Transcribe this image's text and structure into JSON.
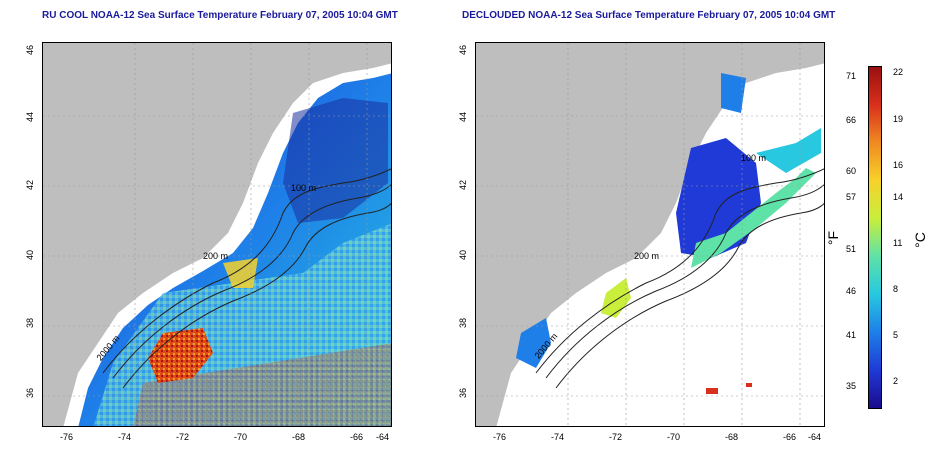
{
  "titles": {
    "left": "RU COOL NOAA-12 Sea Surface Temperature February 07, 2005 10:04 GMT",
    "right": "DECLOUDED NOAA-12 Sea Surface Temperature February 07, 2005 10:04 GMT"
  },
  "axes": {
    "x_ticks": [
      "-76",
      "-74",
      "-72",
      "-70",
      "-68",
      "-66",
      "-64"
    ],
    "y_ticks": [
      "46",
      "44",
      "42",
      "40",
      "38",
      "36"
    ]
  },
  "contour_labels": {
    "left": [
      "100 m",
      "200 m",
      "2000 m"
    ],
    "right": [
      "100 m",
      "200 m",
      "2000 m"
    ]
  },
  "colorbar": {
    "fahrenheit_ticks": [
      "71",
      "66",
      "60",
      "57",
      "51",
      "46",
      "41",
      "35"
    ],
    "celsius_ticks": [
      "22",
      "19",
      "16",
      "14",
      "11",
      "8",
      "5",
      "2"
    ],
    "unit_f": "°F",
    "unit_c": "°C",
    "colors": [
      "#1a0b8c",
      "#1f3ad6",
      "#1e7fe8",
      "#27c8e0",
      "#5ee2a8",
      "#c9ee3c",
      "#f7d22a",
      "#f08a22",
      "#d8301c",
      "#9a1010"
    ]
  },
  "colors": {
    "land": "#bebebe",
    "title": "#1a1a9c"
  }
}
